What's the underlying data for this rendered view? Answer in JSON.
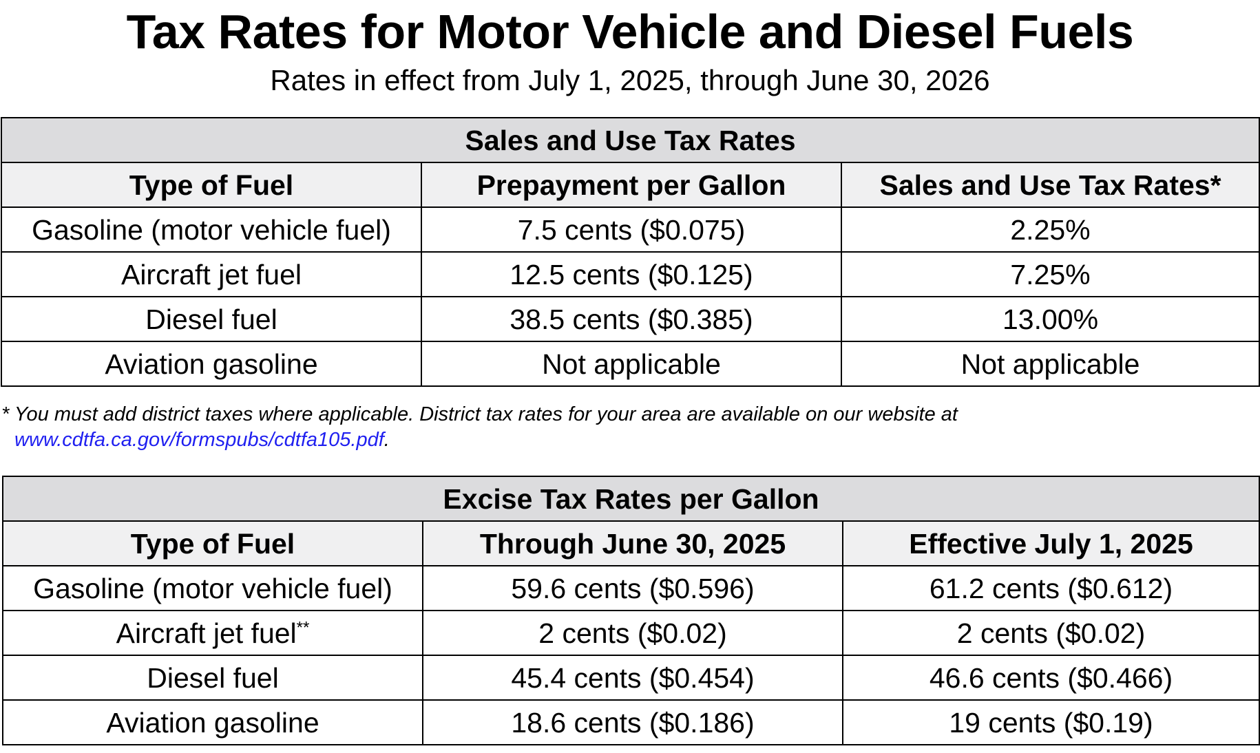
{
  "header": {
    "title": "Tax Rates for Motor Vehicle and Diesel Fuels",
    "subtitle": "Rates in effect from July 1, 2025, through June 30, 2026"
  },
  "sales_table": {
    "title": "Sales and Use Tax Rates",
    "columns": [
      "Type of Fuel",
      "Prepayment per Gallon",
      "Sales and Use Tax Rates*"
    ],
    "rows": [
      {
        "fuel": "Gasoline (motor vehicle fuel)",
        "prepayment": "7.5 cents ($0.075)",
        "rate": "2.25%"
      },
      {
        "fuel": "Aircraft jet fuel",
        "prepayment": "12.5 cents ($0.125)",
        "rate": "7.25%"
      },
      {
        "fuel": "Diesel fuel",
        "prepayment": "38.5 cents ($0.385)",
        "rate": "13.00%"
      },
      {
        "fuel": "Aviation gasoline",
        "prepayment": "Not applicable",
        "rate": "Not applicable"
      }
    ]
  },
  "footnote": {
    "line1": "* You must add district taxes where applicable. District tax rates for your area are available on our website at",
    "link": "www.cdtfa.ca.gov/formspubs/cdtfa105.pdf",
    "after_link": "."
  },
  "excise_table": {
    "title": "Excise Tax Rates per Gallon",
    "columns": [
      "Type of Fuel",
      "Through June 30, 2025",
      "Effective July 1, 2025"
    ],
    "rows": [
      {
        "fuel": "Gasoline (motor vehicle fuel)",
        "fuel_mark": "",
        "through": "59.6 cents ($0.596)",
        "effective": "61.2 cents ($0.612)"
      },
      {
        "fuel": "Aircraft jet fuel",
        "fuel_mark": "**",
        "through": "2 cents ($0.02)",
        "effective": "2 cents ($0.02)"
      },
      {
        "fuel": "Diesel fuel",
        "fuel_mark": "",
        "through": "45.4 cents ($0.454)",
        "effective": "46.6 cents ($0.466)"
      },
      {
        "fuel": "Aviation gasoline",
        "fuel_mark": "",
        "through": "18.6 cents ($0.186)",
        "effective": "19 cents ($0.19)"
      }
    ]
  },
  "colors": {
    "section_header_bg": "#dcdcde",
    "column_header_bg": "#f0f0f1",
    "link": "#1f1ff0",
    "border": "#000000"
  }
}
